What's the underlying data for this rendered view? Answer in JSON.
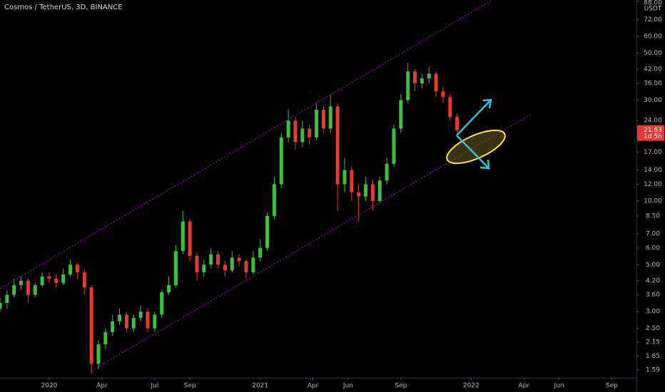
{
  "chart_data": {
    "type": "candlestick",
    "title": "Cosmos / TetherUS, 3D, BINANCE",
    "y_unit": "USDT",
    "log_scale": true,
    "up_color": "#3fbf3f",
    "down_color": "#e53935",
    "x": [
      -2.8,
      -2.4,
      -2.0,
      -1.6,
      -1.2,
      -0.8,
      -0.4,
      0.0,
      0.4,
      0.8,
      1.2,
      1.6,
      2.0,
      2.4,
      2.8,
      3.2,
      3.6,
      4.0,
      4.4,
      4.8,
      5.2,
      5.6,
      6.0,
      6.4,
      6.8,
      7.2,
      7.6,
      8.0,
      8.4,
      8.8,
      9.2,
      9.6,
      10.0,
      10.4,
      10.8,
      11.2,
      11.6,
      12.0,
      12.4,
      12.8,
      13.2,
      13.6,
      14.0,
      14.4,
      14.8,
      15.2,
      15.6,
      16.0,
      16.4,
      16.8,
      17.2,
      17.6,
      18.0,
      18.4,
      18.8,
      19.2,
      19.6,
      20.0,
      20.4,
      20.8,
      21.2,
      21.6,
      22.0,
      22.4,
      22.8,
      23.2
    ],
    "open": [
      3.1,
      3.3,
      3.6,
      4.0,
      4.2,
      3.6,
      4.0,
      4.4,
      4.3,
      4.1,
      4.5,
      5.0,
      4.6,
      3.9,
      1.7,
      2.1,
      2.4,
      2.7,
      2.9,
      2.5,
      2.8,
      3.0,
      2.5,
      2.9,
      3.7,
      4.0,
      5.8,
      8.0,
      5.5,
      4.6,
      5.0,
      5.6,
      5.0,
      4.7,
      5.4,
      5.2,
      4.6,
      5.4,
      6.0,
      8.5,
      12,
      20,
      24,
      19,
      22,
      20,
      27,
      22,
      28,
      12,
      14,
      11,
      10.5,
      12,
      10,
      12.5,
      15,
      22,
      30,
      41,
      36,
      38,
      40,
      33,
      31,
      25
    ],
    "high": [
      3.5,
      3.8,
      4.3,
      4.4,
      4.3,
      4.1,
      4.6,
      4.6,
      4.5,
      4.8,
      5.3,
      5.1,
      4.7,
      4.0,
      2.2,
      2.5,
      2.9,
      3.1,
      3.0,
      2.9,
      3.2,
      3.1,
      3.0,
      3.8,
      4.4,
      6.2,
      9.0,
      8.2,
      5.7,
      5.3,
      6.0,
      5.8,
      5.2,
      5.8,
      5.6,
      5.3,
      5.8,
      6.6,
      8.8,
      13,
      21,
      27,
      25,
      24,
      23,
      29,
      28,
      32,
      29,
      16,
      14.5,
      12,
      13,
      12.5,
      13,
      16,
      23,
      32,
      45,
      42,
      40,
      43,
      41,
      35,
      32,
      26
    ],
    "low": [
      3.0,
      3.1,
      3.5,
      3.8,
      3.3,
      3.5,
      3.9,
      4.1,
      3.9,
      4.0,
      4.4,
      4.3,
      3.6,
      1.52,
      1.6,
      2.0,
      2.3,
      2.6,
      2.4,
      2.4,
      2.7,
      2.4,
      2.4,
      2.8,
      3.6,
      3.9,
      5.6,
      5.2,
      4.2,
      4.4,
      4.8,
      4.8,
      4.4,
      4.6,
      4.9,
      4.3,
      4.5,
      5.2,
      5.8,
      8.2,
      11.5,
      19,
      17.5,
      18,
      18.5,
      19.5,
      21,
      21,
      9,
      11,
      10,
      8,
      10,
      9,
      9.8,
      12,
      14.5,
      21,
      29,
      33,
      34,
      36,
      31,
      29,
      24,
      21
    ],
    "close": [
      3.3,
      3.6,
      4.0,
      4.2,
      3.6,
      4.0,
      4.4,
      4.3,
      4.1,
      4.5,
      5.0,
      4.6,
      3.9,
      1.7,
      2.1,
      2.4,
      2.7,
      2.9,
      2.5,
      2.8,
      3.0,
      2.5,
      2.9,
      3.7,
      4.0,
      5.8,
      8.0,
      5.5,
      4.6,
      5.0,
      5.6,
      5.0,
      4.7,
      5.4,
      5.2,
      4.6,
      5.4,
      6.0,
      8.5,
      12,
      20,
      24,
      19,
      22,
      20,
      27,
      22,
      28,
      12,
      14,
      11,
      10.5,
      12,
      10,
      12.5,
      15,
      22,
      30,
      41,
      36,
      38,
      40,
      33,
      31,
      25,
      21.63
    ],
    "last_price": 21.63,
    "countdown": "1d 5h",
    "xlim": [
      -2.8,
      33.4
    ],
    "xticks": [
      {
        "value": 0,
        "label": "2020"
      },
      {
        "value": 3,
        "label": "Apr"
      },
      {
        "value": 6,
        "label": "Jul"
      },
      {
        "value": 8,
        "label": "Sep"
      },
      {
        "value": 12,
        "label": "2021"
      },
      {
        "value": 15,
        "label": "Apr"
      },
      {
        "value": 17,
        "label": "Jun"
      },
      {
        "value": 20,
        "label": "Sep"
      },
      {
        "value": 24,
        "label": "2022"
      },
      {
        "value": 27,
        "label": "Apr"
      },
      {
        "value": 29,
        "label": "Jun"
      },
      {
        "value": 32,
        "label": "Sep"
      }
    ],
    "ylim": [
      1.46,
      89.2
    ],
    "yticks": [
      {
        "value": 88,
        "label": "88.00"
      },
      {
        "value": 72,
        "label": "72.00"
      },
      {
        "value": 60,
        "label": "60.00"
      },
      {
        "value": 50,
        "label": "50.00"
      },
      {
        "value": 42,
        "label": "42.00"
      },
      {
        "value": 36,
        "label": "36.00"
      },
      {
        "value": 30,
        "label": "30.00"
      },
      {
        "value": 24,
        "label": "24.00"
      },
      {
        "value": 17,
        "label": "17.00"
      },
      {
        "value": 14,
        "label": "14.00"
      },
      {
        "value": 12,
        "label": "12.00"
      },
      {
        "value": 10,
        "label": "10.00"
      },
      {
        "value": 8.5,
        "label": "8.50"
      },
      {
        "value": 7,
        "label": "7.00"
      },
      {
        "value": 6,
        "label": "6.00"
      },
      {
        "value": 5,
        "label": "5.00"
      },
      {
        "value": 4.2,
        "label": "4.20"
      },
      {
        "value": 3.6,
        "label": "3.60"
      },
      {
        "value": 3,
        "label": "3.00"
      },
      {
        "value": 2.5,
        "label": "2.50"
      },
      {
        "value": 2.15,
        "label": "2.15"
      },
      {
        "value": 1.85,
        "label": "1.85"
      },
      {
        "value": 1.59,
        "label": "1.59"
      }
    ]
  }
}
